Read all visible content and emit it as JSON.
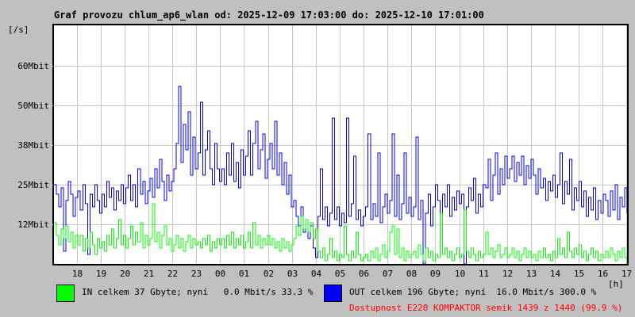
{
  "title": "Graf provozu chlum_ap6_wlan od: 2025-12-09 17:03:00 do: 2025-12-10 17:01:00",
  "colors": {
    "background": "#c0c0c0",
    "plot_background": "#ffffff",
    "grid": "#c6c6c6",
    "border": "#000000",
    "in": "#00ff00",
    "out": "#0000ff",
    "availability": "#ff0000"
  },
  "y_axis": {
    "unit": "[/s]",
    "labels": [
      {
        "text": "60Mbit",
        "value": 62.5
      },
      {
        "text": "50Mbit",
        "value": 50
      },
      {
        "text": "38Mbit",
        "value": 37.5
      },
      {
        "text": "25Mbit",
        "value": 25
      },
      {
        "text": "12Mbit",
        "value": 12.5
      }
    ]
  },
  "x_axis": {
    "unit": "[h]",
    "hour_labels": [
      "18",
      "19",
      "20",
      "21",
      "22",
      "23",
      "00",
      "01",
      "02",
      "03",
      "04",
      "05",
      "06",
      "07",
      "08",
      "09",
      "10",
      "11",
      "12",
      "13",
      "14",
      "15",
      "16",
      "17"
    ],
    "first_mark_offset_min": 57,
    "span_min": 1438
  },
  "legend": {
    "in": {
      "swatch_color": "#00ff00",
      "label": "IN celkem 37 Gbyte; nyní   0.0 Mbit/s 33.3 %"
    },
    "out": {
      "swatch_color": "#0000ff",
      "label": "OUT celkem 196 Gbyte; nyní  16.0 Mbit/s 300.0 %"
    },
    "availability": {
      "color": "#ff0000",
      "label": "Dostupnost E220 KOMPAKTOR semik 1439 z 1440 (99.9 %)"
    }
  },
  "chart_data": {
    "type": "line",
    "title": "Graf provozu chlum_ap6_wlan",
    "time_start": "2025-12-09 17:03:00",
    "time_end": "2025-12-10 17:01:00",
    "xlabel": "[h]",
    "ylabel": "[/s]",
    "ylim": [
      0,
      75.25
    ],
    "grid": true,
    "points_per_hour": 10,
    "hours": [
      "17",
      "18",
      "19",
      "20",
      "21",
      "22",
      "23",
      "00",
      "01",
      "02",
      "03",
      "04",
      "05",
      "06",
      "07",
      "08",
      "09",
      "10",
      "11",
      "12",
      "13",
      "14",
      "15",
      "16"
    ],
    "series": [
      {
        "name": "OUT",
        "color": "#0000ff",
        "unit": "Mbit/s",
        "values_by_hour": [
          [
            25,
            22,
            18,
            24,
            4,
            20,
            26,
            22,
            15,
            21
          ],
          [
            23,
            17,
            25,
            19,
            3,
            22,
            18,
            25,
            20,
            16
          ],
          [
            22,
            18,
            26,
            21,
            24,
            17,
            23,
            20,
            25,
            19
          ],
          [
            24,
            28,
            20,
            25,
            18,
            30,
            22,
            26,
            19,
            23
          ],
          [
            27,
            21,
            30,
            24,
            33,
            26,
            20,
            28,
            23,
            26
          ],
          [
            30,
            38,
            56,
            32,
            44,
            36,
            48,
            28,
            40,
            30
          ],
          [
            35,
            51,
            28,
            36,
            42,
            30,
            25,
            38,
            30,
            26
          ],
          [
            30,
            25,
            35,
            28,
            38,
            26,
            32,
            24,
            36,
            28
          ],
          [
            34,
            42,
            28,
            38,
            45,
            30,
            36,
            41,
            27,
            33
          ],
          [
            38,
            30,
            45,
            28,
            35,
            25,
            32,
            22,
            28,
            18
          ],
          [
            20,
            15,
            12,
            18,
            10,
            14,
            8,
            12,
            5,
            2
          ],
          [
            15,
            30,
            14,
            18,
            12,
            16,
            46,
            14,
            18,
            12
          ],
          [
            16,
            13,
            46,
            15,
            19,
            34,
            14,
            17,
            12,
            15
          ],
          [
            18,
            41,
            14,
            19,
            15,
            35,
            13,
            18,
            22,
            16
          ],
          [
            20,
            41,
            15,
            28,
            14,
            19,
            35,
            16,
            21,
            15
          ],
          [
            18,
            40,
            14,
            20,
            0,
            16,
            22,
            12,
            18,
            25
          ],
          [
            20,
            16,
            22,
            18,
            25,
            15,
            21,
            17,
            23,
            19
          ],
          [
            22,
            0,
            18,
            24,
            20,
            27,
            16,
            22,
            18,
            25
          ],
          [
            24,
            33,
            20,
            28,
            35,
            22,
            30,
            25,
            34,
            27
          ],
          [
            30,
            34,
            26,
            32,
            28,
            34,
            25,
            31,
            27,
            33
          ],
          [
            28,
            22,
            30,
            24,
            27,
            20,
            26,
            23,
            28,
            21
          ],
          [
            25,
            35,
            19,
            26,
            22,
            33,
            17,
            24,
            20,
            26
          ],
          [
            18,
            23,
            15,
            21,
            17,
            24,
            14,
            20,
            16,
            22
          ],
          [
            20,
            15,
            23,
            17,
            25,
            14,
            21,
            18,
            24,
            16
          ]
        ]
      },
      {
        "name": "IN",
        "color": "#00ff00",
        "unit": "Mbit/s",
        "values_by_hour": [
          [
            13,
            9,
            6,
            11,
            8,
            12,
            7,
            10,
            5,
            9
          ],
          [
            6,
            9,
            4,
            8,
            5,
            10,
            6,
            3,
            8,
            5
          ],
          [
            7,
            4,
            9,
            6,
            11,
            5,
            8,
            14,
            6,
            9
          ],
          [
            5,
            8,
            12,
            6,
            10,
            7,
            13,
            5,
            9,
            6
          ],
          [
            8,
            19,
            7,
            10,
            5,
            9,
            12,
            6,
            8,
            4
          ],
          [
            6,
            9,
            5,
            8,
            4,
            7,
            9,
            5,
            8,
            6
          ],
          [
            7,
            5,
            8,
            6,
            9,
            4,
            7,
            5,
            8,
            6
          ],
          [
            8,
            5,
            9,
            6,
            10,
            5,
            8,
            6,
            9,
            5
          ],
          [
            7,
            10,
            5,
            13,
            6,
            9,
            5,
            8,
            6,
            9
          ],
          [
            6,
            8,
            5,
            7,
            4,
            8,
            5,
            7,
            4,
            6
          ],
          [
            8,
            12,
            9,
            15,
            11,
            14,
            10,
            13,
            8,
            11
          ],
          [
            4,
            2,
            5,
            1,
            3,
            8,
            2,
            4,
            1,
            3
          ],
          [
            2,
            12,
            3,
            1,
            4,
            2,
            10,
            3,
            1,
            2
          ],
          [
            3,
            1,
            4,
            2,
            5,
            1,
            3,
            6,
            2,
            4
          ],
          [
            10,
            12,
            3,
            11,
            2,
            5,
            1,
            4,
            2,
            3
          ],
          [
            4,
            2,
            6,
            3,
            1,
            5,
            2,
            4,
            1,
            3
          ],
          [
            2,
            16,
            3,
            5,
            2,
            4,
            1,
            3,
            5,
            2
          ],
          [
            3,
            17,
            4,
            2,
            5,
            3,
            1,
            4,
            2,
            3
          ],
          [
            10,
            3,
            5,
            2,
            4,
            6,
            2,
            3,
            5,
            2
          ],
          [
            3,
            5,
            2,
            4,
            1,
            3,
            5,
            2,
            4,
            2
          ],
          [
            3,
            1,
            4,
            2,
            5,
            2,
            3,
            1,
            4,
            2
          ],
          [
            8,
            3,
            5,
            2,
            10,
            4,
            2,
            5,
            3,
            6
          ],
          [
            2,
            4,
            1,
            3,
            5,
            2,
            4,
            1,
            3,
            2
          ],
          [
            4,
            2,
            5,
            3,
            1,
            4,
            2,
            5,
            2,
            0
          ]
        ]
      }
    ]
  }
}
